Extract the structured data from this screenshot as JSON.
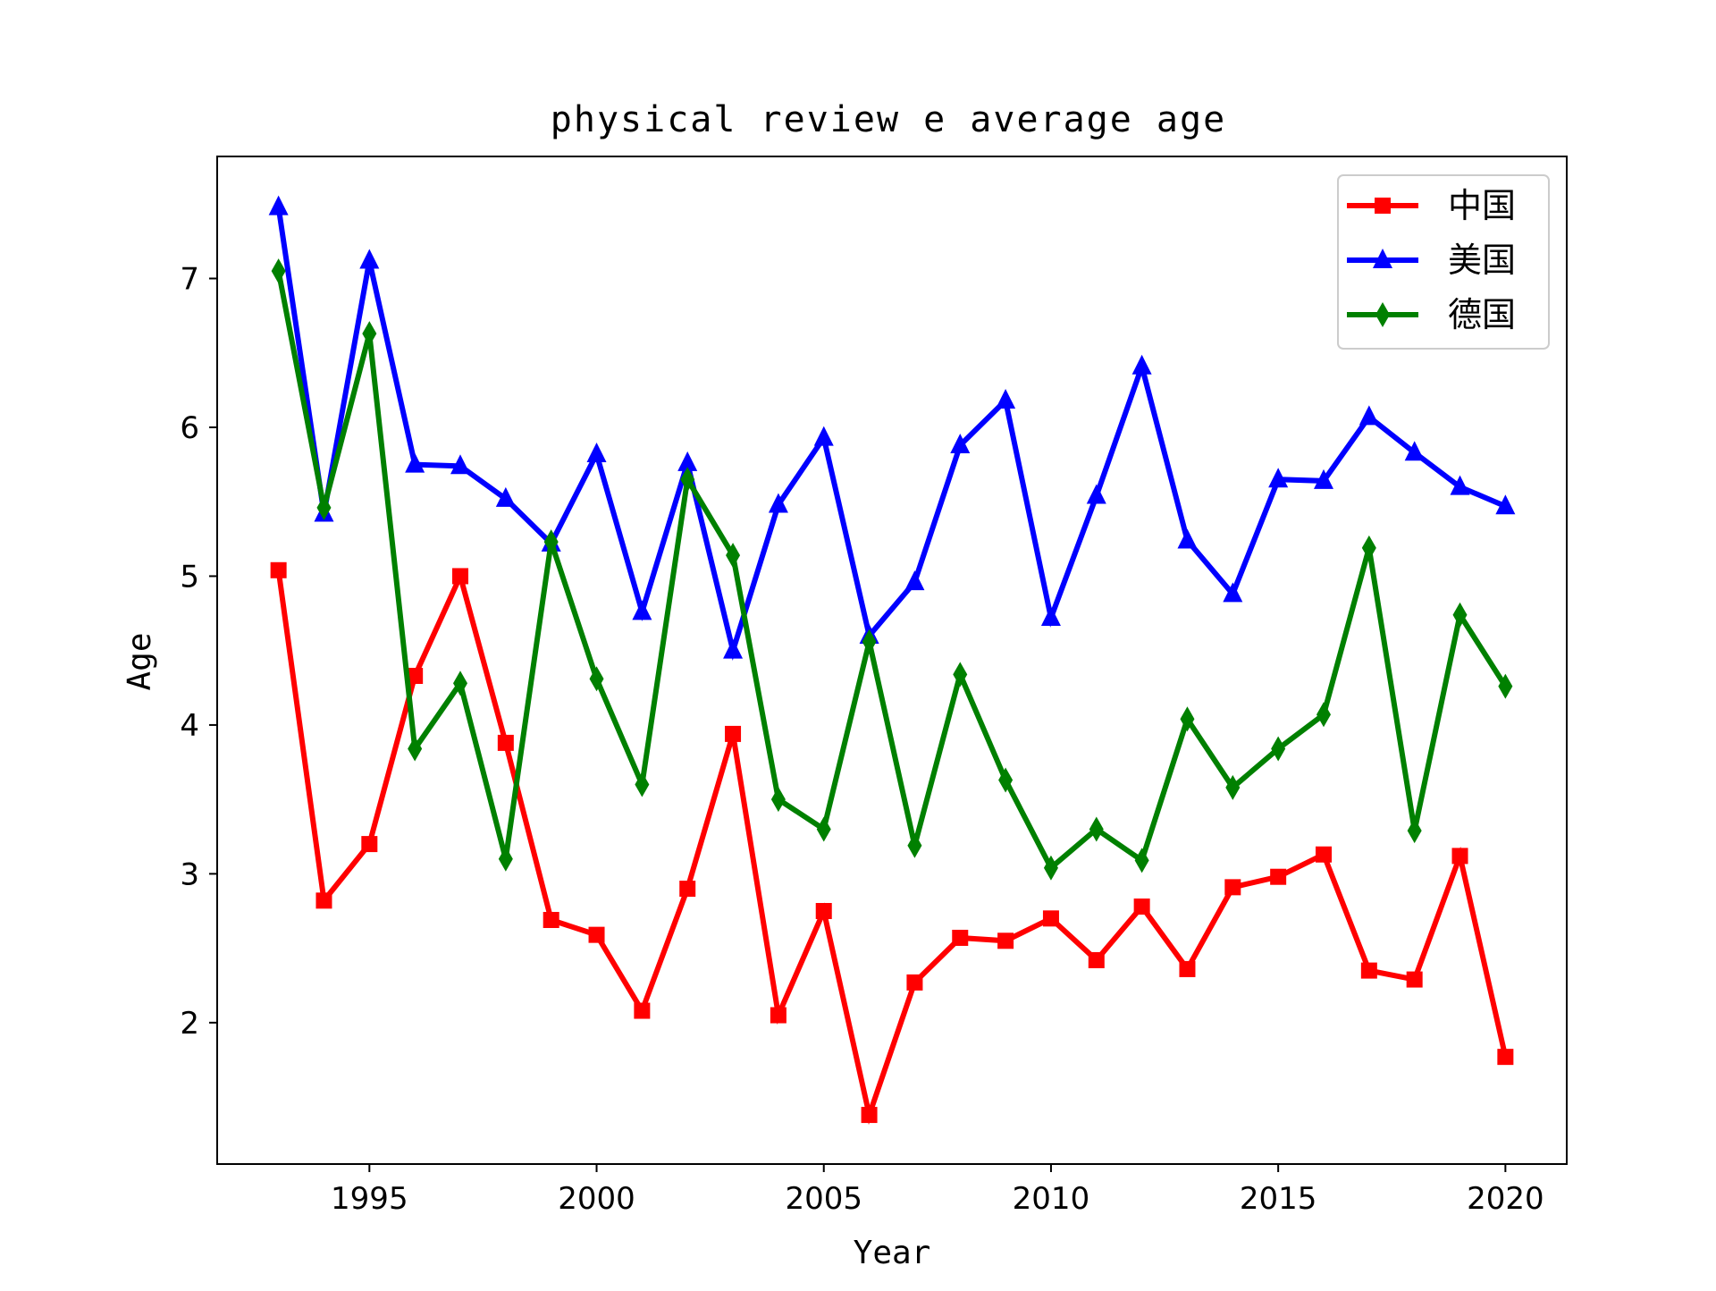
{
  "chart_data": {
    "type": "line",
    "title": "physical review e average age",
    "xlabel": "Year",
    "ylabel": "Age",
    "xlim": [
      1991.65,
      2021.35
    ],
    "ylim": [
      1.05,
      7.82
    ],
    "xticks": [
      1995,
      2000,
      2005,
      2010,
      2015,
      2020
    ],
    "yticks": [
      2,
      3,
      4,
      5,
      6,
      7
    ],
    "grid": false,
    "legend_position": "top-right",
    "x": [
      1993,
      1994,
      1995,
      1996,
      1997,
      1998,
      1999,
      2000,
      2001,
      2002,
      2003,
      2004,
      2005,
      2006,
      2007,
      2008,
      2009,
      2010,
      2011,
      2012,
      2013,
      2014,
      2015,
      2016,
      2017,
      2018,
      2019,
      2020
    ],
    "series": [
      {
        "name": "中国",
        "color": "#ff0000",
        "marker": "square",
        "values": [
          5.04,
          2.82,
          3.2,
          4.33,
          5.0,
          3.88,
          2.69,
          2.59,
          2.08,
          2.9,
          3.94,
          2.05,
          2.75,
          1.38,
          2.27,
          2.57,
          2.55,
          2.7,
          2.42,
          2.78,
          2.36,
          2.91,
          2.98,
          3.13,
          2.35,
          2.29,
          3.12,
          1.77
        ]
      },
      {
        "name": "美国",
        "color": "#0000ff",
        "marker": "triangle",
        "values": [
          7.48,
          5.42,
          7.12,
          5.75,
          5.74,
          5.52,
          5.22,
          5.82,
          4.76,
          5.76,
          4.5,
          5.48,
          5.93,
          4.6,
          4.96,
          5.88,
          6.18,
          4.72,
          5.54,
          6.41,
          5.24,
          4.88,
          5.65,
          5.64,
          6.07,
          5.83,
          5.6,
          5.47
        ]
      },
      {
        "name": "德国",
        "color": "#008000",
        "marker": "diamond",
        "values": [
          7.05,
          5.46,
          6.63,
          3.84,
          4.28,
          3.1,
          5.23,
          4.31,
          3.6,
          5.65,
          5.14,
          3.5,
          3.3,
          4.56,
          3.19,
          4.34,
          3.63,
          3.04,
          3.3,
          3.09,
          4.04,
          3.58,
          3.84,
          4.07,
          5.19,
          3.29,
          4.74,
          4.26
        ]
      }
    ]
  }
}
